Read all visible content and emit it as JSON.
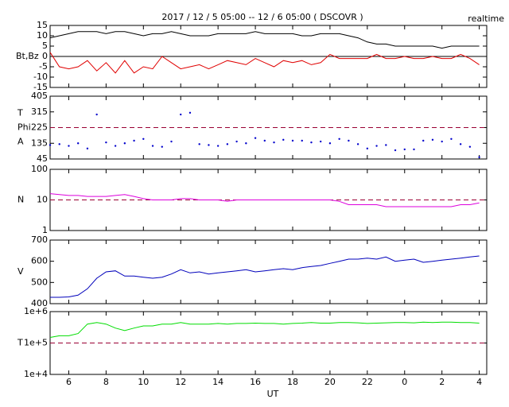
{
  "chart_data": [
    {
      "type": "line",
      "title": "2017 / 12 / 5  05:00 -- 12 / 6  05:00 ( DSCOVR )",
      "subtitle": "realtime",
      "ylabel": [
        "Bt,Bz"
      ],
      "x": [
        5,
        5.5,
        6,
        6.5,
        7,
        7.5,
        8,
        8.5,
        9,
        9.5,
        10,
        10.5,
        11,
        11.5,
        12,
        12.5,
        13,
        13.5,
        14,
        14.5,
        15,
        15.5,
        16,
        16.5,
        17,
        17.5,
        18,
        18.5,
        19,
        19.5,
        20,
        20.5,
        21,
        21.5,
        22,
        22.5,
        23,
        23.5,
        24,
        24.5,
        25,
        25.5,
        26,
        26.5,
        27,
        27.5,
        28
      ],
      "xlim": [
        5,
        28.4
      ],
      "ylim": [
        -15,
        15
      ],
      "yticks": [
        15,
        10,
        5,
        0,
        -5,
        -10,
        -15
      ],
      "reference_line": 0,
      "series": [
        {
          "name": "Bt",
          "color": "#000000",
          "values": [
            9,
            10,
            11,
            12,
            12,
            12,
            11,
            12,
            12,
            11,
            10,
            11,
            11,
            12,
            11,
            10,
            10,
            10,
            11,
            11,
            11,
            11,
            12,
            11,
            11,
            11,
            11,
            10,
            10,
            11,
            11,
            11,
            10,
            9,
            7,
            6,
            6,
            5,
            5,
            5,
            5,
            5,
            4,
            5,
            5,
            5,
            5
          ]
        },
        {
          "name": "Bz",
          "color": "#e00000",
          "values": [
            2,
            -5,
            -6,
            -5,
            -2,
            -7,
            -3,
            -8,
            -2,
            -8,
            -5,
            -6,
            0,
            -3,
            -6,
            -5,
            -4,
            -6,
            -4,
            -2,
            -3,
            -4,
            -1,
            -3,
            -5,
            -2,
            -3,
            -2,
            -4,
            -3,
            1,
            -1,
            -1,
            -1,
            -1,
            1,
            -1,
            -1,
            0,
            -1,
            -1,
            0,
            -1,
            -1,
            1,
            -1,
            -4
          ]
        }
      ]
    },
    {
      "type": "scatter",
      "ylabel": [
        "T",
        "Phi",
        "A"
      ],
      "x": [
        5,
        5.5,
        6,
        6.5,
        7,
        7.5,
        8,
        8.5,
        9,
        9.5,
        10,
        10.5,
        11,
        11.5,
        12,
        12.5,
        13,
        13.5,
        14,
        14.5,
        15,
        15.5,
        16,
        16.5,
        17,
        17.5,
        18,
        18.5,
        19,
        19.5,
        20,
        20.5,
        21,
        21.5,
        22,
        22.5,
        23,
        23.5,
        24,
        24.5,
        25,
        25.5,
        26,
        26.5,
        27,
        27.5,
        28
      ],
      "xlim": [
        5,
        28.4
      ],
      "ylim": [
        45,
        405
      ],
      "yticks": [
        405,
        315,
        225,
        135,
        45
      ],
      "reference_line": 225,
      "series": [
        {
          "name": "Phi",
          "color": "#0000cc",
          "values": [
            125,
            130,
            120,
            135,
            105,
            300,
            140,
            120,
            135,
            150,
            160,
            120,
            115,
            145,
            300,
            310,
            130,
            125,
            120,
            130,
            145,
            135,
            165,
            150,
            140,
            155,
            150,
            150,
            140,
            145,
            135,
            160,
            150,
            130,
            105,
            120,
            125,
            95,
            100,
            100,
            150,
            155,
            145,
            160,
            130,
            115,
            55
          ]
        }
      ]
    },
    {
      "type": "line",
      "ylabel": [
        "N"
      ],
      "log": true,
      "x": [
        5,
        5.5,
        6,
        6.5,
        7,
        7.5,
        8,
        8.5,
        9,
        9.5,
        10,
        10.5,
        11,
        11.5,
        12,
        12.5,
        13,
        13.5,
        14,
        14.5,
        15,
        15.5,
        16,
        16.5,
        17,
        17.5,
        18,
        18.5,
        19,
        19.5,
        20,
        20.5,
        21,
        21.5,
        22,
        22.5,
        23,
        23.5,
        24,
        24.5,
        25,
        25.5,
        26,
        26.5,
        27,
        27.5,
        28
      ],
      "xlim": [
        5,
        28.4
      ],
      "ylim": [
        1,
        100
      ],
      "yticks": [
        100,
        10,
        1
      ],
      "reference_line": 10,
      "series": [
        {
          "name": "N",
          "color": "#dd00dd",
          "values": [
            16,
            15,
            14,
            14,
            13,
            13,
            13,
            14,
            15,
            13,
            11,
            10,
            10,
            10,
            11,
            11,
            10,
            10,
            10,
            9,
            10,
            10,
            10,
            10,
            10,
            10,
            10,
            10,
            10,
            10,
            10,
            9,
            7,
            7,
            7,
            7,
            6,
            6,
            6,
            6,
            6,
            6,
            6,
            6,
            7,
            7,
            8
          ]
        }
      ]
    },
    {
      "type": "line",
      "ylabel": [
        "V"
      ],
      "x": [
        5,
        5.5,
        6,
        6.5,
        7,
        7.5,
        8,
        8.5,
        9,
        9.5,
        10,
        10.5,
        11,
        11.5,
        12,
        12.5,
        13,
        13.5,
        14,
        14.5,
        15,
        15.5,
        16,
        16.5,
        17,
        17.5,
        18,
        18.5,
        19,
        19.5,
        20,
        20.5,
        21,
        21.5,
        22,
        22.5,
        23,
        23.5,
        24,
        24.5,
        25,
        25.5,
        26,
        26.5,
        27,
        27.5,
        28
      ],
      "xlim": [
        5,
        28.4
      ],
      "ylim": [
        400,
        700
      ],
      "yticks": [
        700,
        600,
        500,
        400
      ],
      "series": [
        {
          "name": "V",
          "color": "#0000bb",
          "values": [
            430,
            430,
            432,
            440,
            470,
            520,
            550,
            555,
            530,
            530,
            525,
            520,
            525,
            540,
            560,
            545,
            550,
            540,
            545,
            550,
            555,
            560,
            550,
            555,
            560,
            565,
            560,
            570,
            575,
            580,
            590,
            600,
            610,
            610,
            615,
            610,
            620,
            600,
            605,
            610,
            595,
            600,
            605,
            610,
            615,
            620,
            625
          ]
        }
      ]
    },
    {
      "type": "line",
      "ylabel": [
        "T"
      ],
      "log": true,
      "xlabel": "UT",
      "x": [
        5,
        5.5,
        6,
        6.5,
        7,
        7.5,
        8,
        8.5,
        9,
        9.5,
        10,
        10.5,
        11,
        11.5,
        12,
        12.5,
        13,
        13.5,
        14,
        14.5,
        15,
        15.5,
        16,
        16.5,
        17,
        17.5,
        18,
        18.5,
        19,
        19.5,
        20,
        20.5,
        21,
        21.5,
        22,
        22.5,
        23,
        23.5,
        24,
        24.5,
        25,
        25.5,
        26,
        26.5,
        27,
        27.5,
        28
      ],
      "xlim": [
        5,
        28.4
      ],
      "ylim": [
        10000,
        1000000
      ],
      "yticks": [
        {
          "value": 1000000,
          "label": "1e+6"
        },
        {
          "value": 100000,
          "label": "1e+5"
        },
        {
          "value": 10000,
          "label": "1e+4"
        }
      ],
      "xticks": [
        6,
        8,
        10,
        12,
        14,
        16,
        18,
        20,
        22,
        {
          "value": 24,
          "label": "0"
        },
        {
          "value": 26,
          "label": "2"
        },
        {
          "value": 28,
          "label": "4"
        }
      ],
      "reference_line": 100000,
      "series": [
        {
          "name": "T",
          "color": "#00dd00",
          "values": [
            150000,
            170000,
            170000,
            200000,
            400000,
            450000,
            400000,
            300000,
            250000,
            300000,
            350000,
            350000,
            400000,
            400000,
            450000,
            400000,
            400000,
            400000,
            420000,
            400000,
            420000,
            420000,
            430000,
            420000,
            420000,
            400000,
            420000,
            430000,
            450000,
            430000,
            430000,
            450000,
            450000,
            440000,
            420000,
            430000,
            440000,
            450000,
            450000,
            440000,
            460000,
            450000,
            460000,
            460000,
            450000,
            450000,
            430000
          ]
        }
      ]
    }
  ]
}
